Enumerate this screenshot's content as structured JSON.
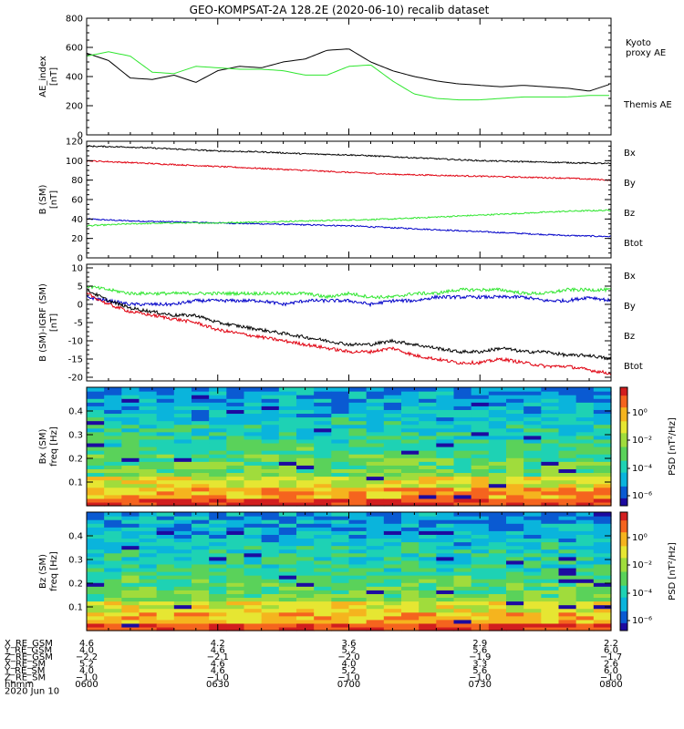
{
  "title": "GEO-KOMPSAT-2A 128.2E (2020-06-10) recalib dataset",
  "colors": {
    "black": "#000000",
    "red": "#e0000f",
    "green": "#2ee62e",
    "blue": "#0000c8"
  },
  "chart_data": [
    {
      "type": "line",
      "panel": "ae",
      "ylabel": "AE_index",
      "yunit": "[nT]",
      "ylim": [
        0,
        800
      ],
      "yticks": [
        0,
        200,
        400,
        600,
        800
      ],
      "x": [
        0,
        5,
        10,
        15,
        20,
        25,
        30,
        35,
        40,
        45,
        50,
        55,
        60,
        65,
        70,
        75,
        80,
        85,
        90,
        95,
        100,
        105,
        110,
        115,
        120
      ],
      "series": [
        {
          "name": "Themis AE",
          "label_lines": [
            "Themis AE"
          ],
          "color": "black",
          "values": [
            560,
            510,
            390,
            380,
            410,
            360,
            440,
            470,
            460,
            500,
            520,
            580,
            590,
            500,
            440,
            400,
            370,
            350,
            340,
            330,
            340,
            330,
            320,
            300,
            350
          ]
        },
        {
          "name": "Kyoto proxy AE",
          "label_lines": [
            "Kyoto",
            "proxy AE"
          ],
          "color": "green",
          "values": [
            540,
            570,
            540,
            430,
            420,
            470,
            460,
            450,
            450,
            440,
            410,
            410,
            470,
            480,
            370,
            280,
            250,
            240,
            240,
            250,
            260,
            260,
            260,
            270,
            270
          ]
        }
      ]
    },
    {
      "type": "line",
      "panel": "b",
      "ylabel": "B (SM)",
      "yunit": "[nT]",
      "ylim": [
        0,
        120
      ],
      "yticks": [
        0,
        20,
        40,
        60,
        80,
        100,
        120
      ],
      "x": [
        0,
        10,
        20,
        30,
        40,
        50,
        60,
        70,
        80,
        90,
        100,
        110,
        120
      ],
      "series": [
        {
          "name": "Bx",
          "color": "blue",
          "values": [
            40,
            38,
            37,
            36,
            35,
            34,
            33,
            31,
            29,
            27,
            25,
            23,
            22
          ]
        },
        {
          "name": "By",
          "color": "green",
          "values": [
            33,
            35,
            36,
            36,
            37,
            38,
            39,
            40,
            42,
            44,
            46,
            48,
            49
          ]
        },
        {
          "name": "Bz",
          "color": "red",
          "values": [
            100,
            98,
            96,
            94,
            92,
            90,
            88,
            86,
            85,
            84,
            83,
            82,
            80
          ]
        },
        {
          "name": "Btot",
          "color": "black",
          "values": [
            115,
            114,
            112,
            110,
            109,
            107,
            106,
            104,
            102,
            100,
            99,
            98,
            97
          ]
        }
      ]
    },
    {
      "type": "line",
      "panel": "db",
      "ylabel": "B (SM)-IGRF (SM)",
      "yunit": "[nT]",
      "ylim": [
        -21,
        11
      ],
      "yticks": [
        -20,
        -15,
        -10,
        -5,
        0,
        5,
        10
      ],
      "x": [
        0,
        5,
        10,
        15,
        20,
        25,
        30,
        35,
        40,
        45,
        50,
        55,
        60,
        65,
        70,
        75,
        80,
        85,
        90,
        95,
        100,
        105,
        110,
        115,
        120
      ],
      "series": [
        {
          "name": "Bx",
          "color": "blue",
          "values": [
            2,
            1,
            0,
            0,
            0,
            1,
            1,
            1,
            1,
            0,
            1,
            1,
            1,
            0,
            1,
            1,
            2,
            2,
            2,
            2,
            2,
            1,
            1,
            2,
            1
          ]
        },
        {
          "name": "By",
          "color": "green",
          "values": [
            5,
            4,
            3,
            3,
            3,
            3,
            3,
            3,
            3,
            3,
            3,
            2,
            3,
            2,
            2,
            3,
            3,
            4,
            4,
            4,
            3,
            3,
            4,
            4,
            4
          ]
        },
        {
          "name": "Bz",
          "color": "red",
          "values": [
            3,
            0,
            -2,
            -3,
            -4,
            -5,
            -7,
            -8,
            -9,
            -10,
            -11,
            -12,
            -13,
            -13,
            -12,
            -14,
            -15,
            -16,
            -16,
            -15,
            -16,
            -17,
            -17,
            -18,
            -19
          ]
        },
        {
          "name": "Btot",
          "color": "black",
          "values": [
            4,
            1,
            -1,
            -2,
            -3,
            -3,
            -5,
            -6,
            -7,
            -8,
            -9,
            -10,
            -11,
            -11,
            -10,
            -11,
            -12,
            -13,
            -13,
            -12,
            -13,
            -13,
            -14,
            -14,
            -15
          ]
        }
      ]
    },
    {
      "type": "heatmap",
      "panel": "specx",
      "ylabel": "Bx (SM)",
      "yunit": "freq [Hz]",
      "ylim": [
        0,
        0.5
      ],
      "yticks": [
        "0.1",
        "0.2",
        "0.3",
        "0.4"
      ],
      "colorbar_label": "PSD [nT²/Hz]",
      "colorbar_ticks": [
        "10⁰",
        "10⁻²",
        "10⁻⁴",
        "10⁻⁶"
      ]
    },
    {
      "type": "heatmap",
      "panel": "specz",
      "ylabel": "Bz (SM)",
      "yunit": "freq [Hz]",
      "ylim": [
        0,
        0.5
      ],
      "yticks": [
        "0.1",
        "0.2",
        "0.3",
        "0.4"
      ],
      "colorbar_label": "PSD [nT²/Hz]",
      "colorbar_ticks": [
        "10⁰",
        "10⁻²",
        "10⁻⁴",
        "10⁻⁶"
      ]
    }
  ],
  "xaxis": {
    "rows": [
      {
        "label": "X_RE_GSM",
        "values": [
          "4.6",
          "4.2",
          "3.6",
          "2.9",
          "2.2"
        ]
      },
      {
        "label": "Y_RE_GSM",
        "values": [
          "4.0",
          "4.6",
          "5.2",
          "5.6",
          "6.0"
        ]
      },
      {
        "label": "Z_RE_GSM",
        "values": [
          "−2.2",
          "−2.1",
          "−2.0",
          "−1.9",
          "−1.7"
        ]
      },
      {
        "label": "X_RE_SM",
        "values": [
          "5.2",
          "4.6",
          "4.0",
          "3.3",
          "2.6"
        ]
      },
      {
        "label": "Y_RE_SM",
        "values": [
          "4.0",
          "4.6",
          "5.2",
          "5.6",
          "6.0"
        ]
      },
      {
        "label": "Z_RE_SM",
        "values": [
          "−1.0",
          "−1.0",
          "−1.0",
          "−1.0",
          "−1.0"
        ]
      },
      {
        "label": "hhmm",
        "values": [
          "0600",
          "0630",
          "0700",
          "0730",
          "0800"
        ]
      }
    ],
    "date": "2020 Jun 10"
  }
}
